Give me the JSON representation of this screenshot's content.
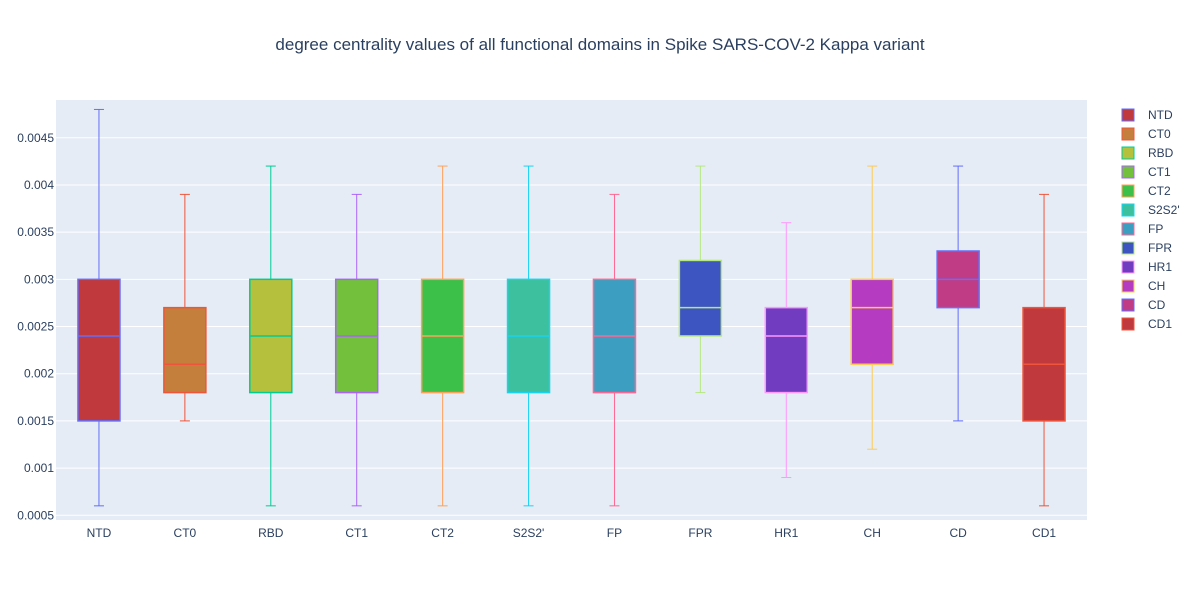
{
  "chart_data": {
    "type": "box",
    "title": "degree centrality values of all functional domains in Spike SARS-COV-2 Kappa variant",
    "xlabel": "",
    "ylabel": "",
    "ylim": [
      0.00045,
      0.0049
    ],
    "yticks": [
      {
        "value": 0.0005,
        "label": "0.0005"
      },
      {
        "value": 0.001,
        "label": "0.001"
      },
      {
        "value": 0.0015,
        "label": "0.0015"
      },
      {
        "value": 0.002,
        "label": "0.002"
      },
      {
        "value": 0.0025,
        "label": "0.0025"
      },
      {
        "value": 0.003,
        "label": "0.003"
      },
      {
        "value": 0.0035,
        "label": "0.0035"
      },
      {
        "value": 0.004,
        "label": "0.004"
      },
      {
        "value": 0.0045,
        "label": "0.0045"
      }
    ],
    "grid": true,
    "legend_position": "right",
    "background": "#e5ecf6",
    "series": [
      {
        "name": "NTD",
        "color": "#c0393c",
        "line": "#636efa",
        "min": 0.0006,
        "q1": 0.0015,
        "median": 0.0024,
        "q3": 0.003,
        "max": 0.0048
      },
      {
        "name": "CT0",
        "color": "#c47f3c",
        "line": "#ef553b",
        "min": 0.0015,
        "q1": 0.0018,
        "median": 0.0021,
        "q3": 0.0027,
        "max": 0.0039
      },
      {
        "name": "RBD",
        "color": "#b5c03c",
        "line": "#00cc96",
        "min": 0.0006,
        "q1": 0.0018,
        "median": 0.0024,
        "q3": 0.003,
        "max": 0.0042
      },
      {
        "name": "CT1",
        "color": "#72c03c",
        "line": "#ab63fa",
        "min": 0.0006,
        "q1": 0.0018,
        "median": 0.0024,
        "q3": 0.003,
        "max": 0.0039
      },
      {
        "name": "CT2",
        "color": "#3cc04a",
        "line": "#ffa15a",
        "min": 0.0006,
        "q1": 0.0018,
        "median": 0.0024,
        "q3": 0.003,
        "max": 0.0042
      },
      {
        "name": "S2S2'",
        "color": "#3cc09e",
        "line": "#19d3f3",
        "min": 0.0006,
        "q1": 0.0018,
        "median": 0.0024,
        "q3": 0.003,
        "max": 0.0042
      },
      {
        "name": "FP",
        "color": "#3c9ec0",
        "line": "#ff6692",
        "min": 0.0006,
        "q1": 0.0018,
        "median": 0.0024,
        "q3": 0.003,
        "max": 0.0039
      },
      {
        "name": "FPR",
        "color": "#3c55c0",
        "line": "#b6e880",
        "min": 0.0018,
        "q1": 0.0024,
        "median": 0.0027,
        "q3": 0.0032,
        "max": 0.0042
      },
      {
        "name": "HR1",
        "color": "#723cc0",
        "line": "#ff97ff",
        "min": 0.0009,
        "q1": 0.0018,
        "median": 0.0024,
        "q3": 0.0027,
        "max": 0.0036
      },
      {
        "name": "CH",
        "color": "#b53cc0",
        "line": "#fecb52",
        "min": 0.0012,
        "q1": 0.0021,
        "median": 0.0027,
        "q3": 0.003,
        "max": 0.0042
      },
      {
        "name": "CD",
        "color": "#c03c84",
        "line": "#636efa",
        "min": 0.0015,
        "q1": 0.0027,
        "median": 0.003,
        "q3": 0.0033,
        "max": 0.0042
      },
      {
        "name": "CD1",
        "color": "#c0393c",
        "line": "#ef553b",
        "min": 0.0006,
        "q1": 0.0015,
        "median": 0.0021,
        "q3": 0.0027,
        "max": 0.0039
      }
    ]
  }
}
